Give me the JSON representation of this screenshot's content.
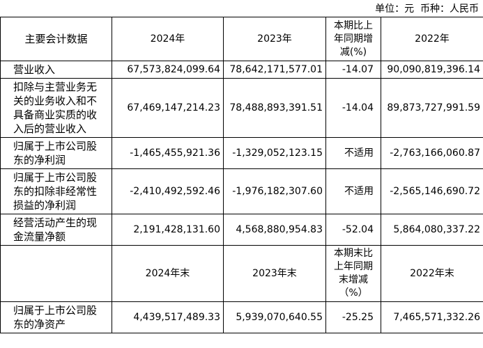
{
  "unit_note": "单位：元  币种：人民币",
  "table": {
    "sections": [
      {
        "header": [
          "主要会计数据",
          "2024年",
          "2023年",
          "本期比上年同期增减(%)",
          "2022年"
        ],
        "rows": [
          [
            "营业收入",
            "67,573,824,099.64",
            "78,642,171,577.01",
            "-14.07",
            "90,090,819,396.14"
          ],
          [
            "扣除与主营业务无关的业务收入和不具备商业实质的收入后的营业收入",
            "67,469,147,214.23",
            "78,488,893,391.51",
            "-14.04",
            "89,873,727,991.59"
          ],
          [
            "归属于上市公司股东的净利润",
            "-1,465,455,921.36",
            "-1,329,052,123.15",
            "不适用",
            "-2,763,166,060.87"
          ],
          [
            "归属于上市公司股东的扣除非经常性损益的净利润",
            "-2,410,492,592.46",
            "-1,976,182,307.60",
            "不适用",
            "-2,565,146,690.72"
          ],
          [
            "经营活动产生的现金流量净额",
            "2,191,428,131.60",
            "4,568,880,954.83",
            "-52.04",
            "5,864,080,337.22"
          ]
        ]
      },
      {
        "header": [
          "",
          "2024年末",
          "2023年末",
          "本期末比上年同期末增减（%）",
          "2022年末"
        ],
        "rows": [
          [
            "归属于上市公司股东的净资产",
            "4,439,517,489.33",
            "5,939,070,640.55",
            "-25.25",
            "7,465,571,332.26"
          ]
        ]
      }
    ]
  }
}
